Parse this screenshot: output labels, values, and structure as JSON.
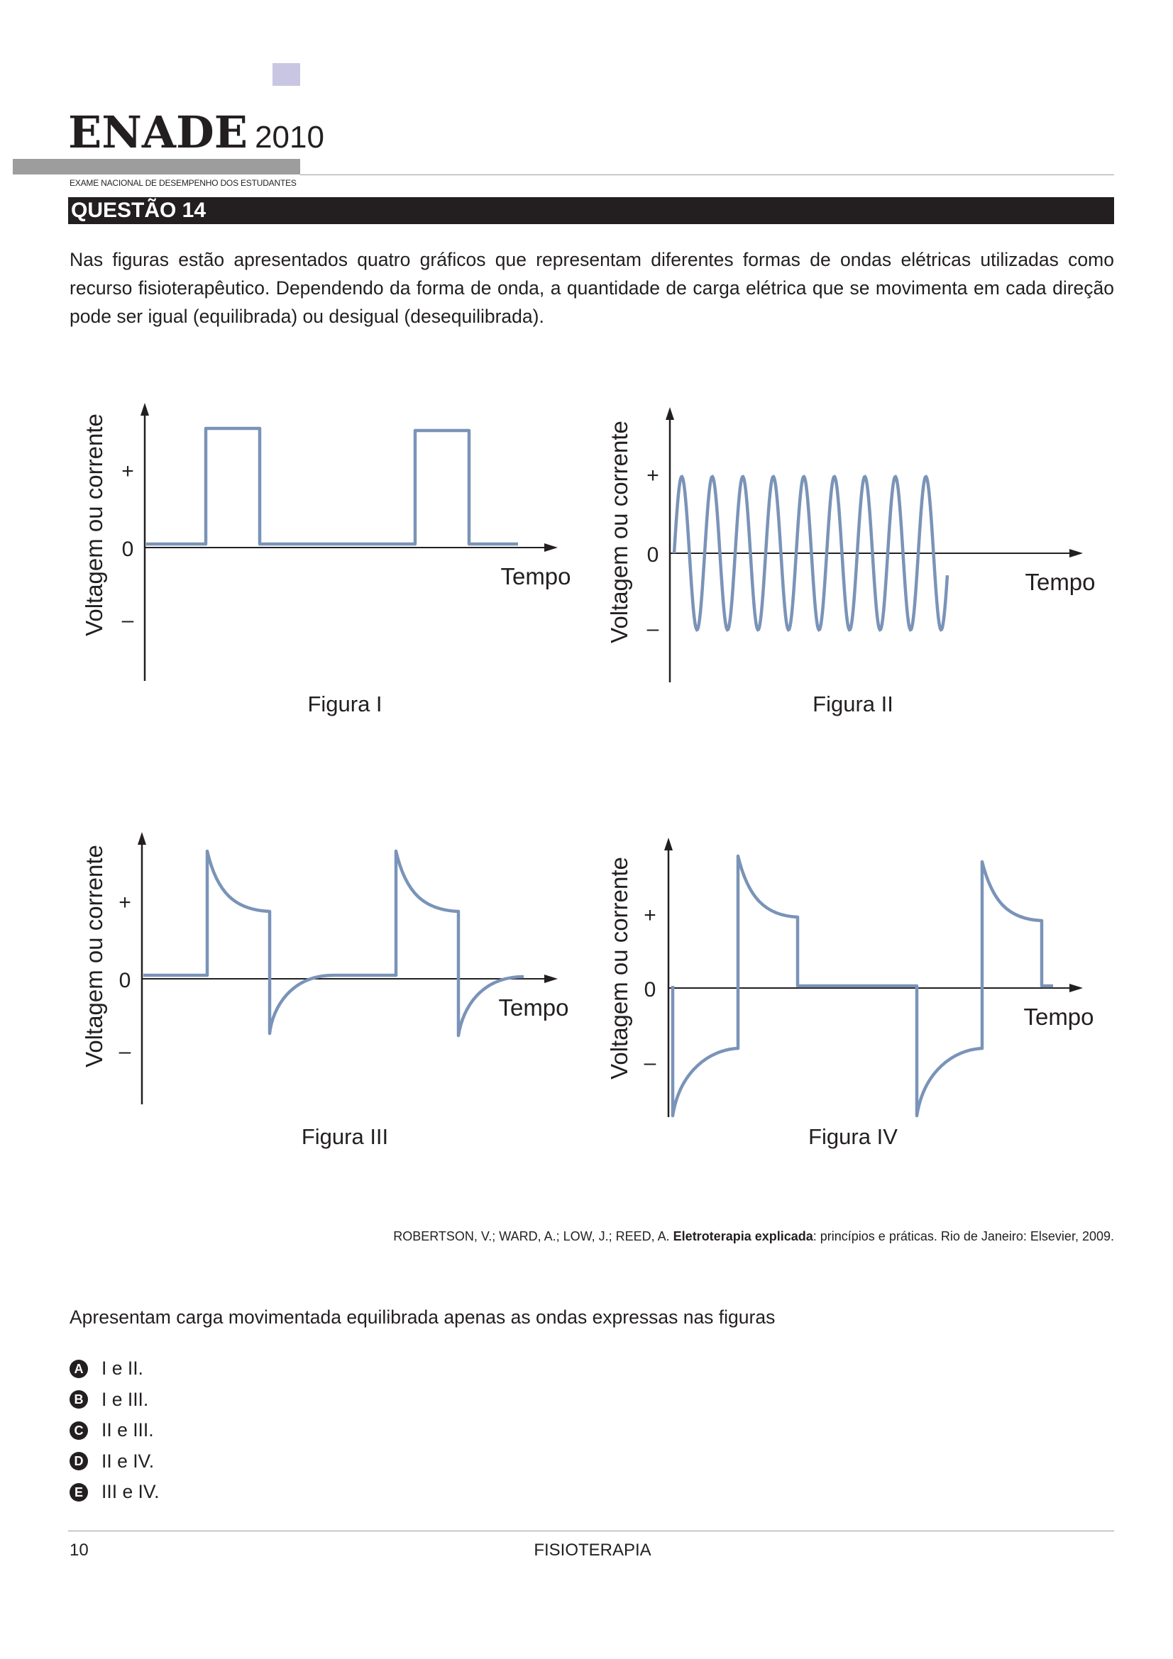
{
  "header": {
    "brand": "ENADE",
    "year": "2010",
    "subtitle": "EXAME NACIONAL DE DESEMPENHO DOS ESTUDANTES"
  },
  "question": {
    "title": "QUESTÃO 14",
    "intro": "Nas figuras estão apresentados quatro gráficos que representam diferentes formas de ondas elétricas utilizadas como recurso fisioterapêutico. Dependendo da forma de onda, a quantidade de carga elétrica que se movimenta em cada direção pode ser igual (equilibrada) ou desigual (desequilibrada).",
    "prompt": "Apresentam carga movimentada equilibrada apenas as ondas expressas nas figuras",
    "options": [
      {
        "letter": "A",
        "text": "I e II."
      },
      {
        "letter": "B",
        "text": "I e III."
      },
      {
        "letter": "C",
        "text": "II e III."
      },
      {
        "letter": "D",
        "text": "II e IV."
      },
      {
        "letter": "E",
        "text": "III e IV."
      }
    ]
  },
  "figures": {
    "axis_y_label": "Voltagem ou corrente",
    "axis_x_label": "Tempo",
    "tick_plus": "+",
    "tick_zero": "0",
    "tick_minus": "–",
    "line_color": "#7a93b8",
    "items": [
      {
        "caption": "Figura I",
        "waveform": "monophasic-rectangular-pulse"
      },
      {
        "caption": "Figura II",
        "waveform": "sinusoidal-alternating"
      },
      {
        "caption": "Figura III",
        "waveform": "biphasic-asymmetric-balanced"
      },
      {
        "caption": "Figura IV",
        "waveform": "biphasic-with-interphase-interval"
      }
    ]
  },
  "reference": {
    "authors": "ROBERTSON, V.; WARD, A.; LOW, J.; REED, A. ",
    "title": "Eletroterapia explicada",
    "rest": ": princípios e práticas. Rio de Janeiro: Elsevier, 2009."
  },
  "footer": {
    "page": "10",
    "course": "FISIOTERAPIA"
  }
}
